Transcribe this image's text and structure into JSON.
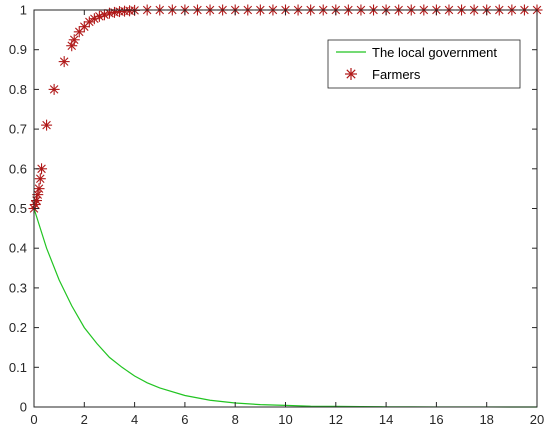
{
  "chart_data": {
    "type": "line",
    "title": "",
    "xlabel": "",
    "ylabel": "",
    "xlim": [
      0,
      20
    ],
    "ylim": [
      0,
      1
    ],
    "grid": false,
    "legend_position": "top-right",
    "x_ticks": [
      "0",
      "2",
      "4",
      "6",
      "8",
      "10",
      "12",
      "14",
      "16",
      "18",
      "20"
    ],
    "y_ticks": [
      "0",
      "0.1",
      "0.2",
      "0.3",
      "0.4",
      "0.5",
      "0.6",
      "0.7",
      "0.8",
      "0.9",
      "1"
    ],
    "series": [
      {
        "name": "The local government",
        "kind": "line",
        "color": "#22c422",
        "x": [
          0,
          0.5,
          1,
          1.5,
          2,
          2.5,
          3,
          3.5,
          4,
          4.5,
          5,
          6,
          7,
          8,
          9,
          10,
          11,
          12,
          13,
          14,
          15,
          16,
          17,
          18,
          19,
          20
        ],
        "y": [
          0.5,
          0.4,
          0.32,
          0.255,
          0.2,
          0.16,
          0.125,
          0.1,
          0.078,
          0.061,
          0.048,
          0.029,
          0.017,
          0.01,
          0.006,
          0.004,
          0.002,
          0.0015,
          0.001,
          0.0005,
          0.0003,
          0.0002,
          0.0001,
          0.0001,
          0.0,
          0.0
        ]
      },
      {
        "name": "Farmers",
        "kind": "scatter",
        "marker": "asterisk",
        "color": "#b01818",
        "x": [
          0,
          0.05,
          0.1,
          0.15,
          0.2,
          0.25,
          0.3,
          0.5,
          0.8,
          1.2,
          1.5,
          1.6,
          1.8,
          2.0,
          2.2,
          2.4,
          2.6,
          2.8,
          3.0,
          3.2,
          3.4,
          3.6,
          3.8,
          4.0,
          4.5,
          5,
          5.5,
          6,
          6.5,
          7,
          7.5,
          8,
          8.5,
          9,
          9.5,
          10,
          10.5,
          11,
          11.5,
          12,
          12.5,
          13,
          13.5,
          14,
          14.5,
          15,
          15.5,
          16,
          16.5,
          17,
          17.5,
          18,
          18.5,
          19,
          19.5,
          20
        ],
        "y": [
          0.5,
          0.51,
          0.52,
          0.535,
          0.55,
          0.575,
          0.6,
          0.71,
          0.8,
          0.87,
          0.91,
          0.925,
          0.945,
          0.958,
          0.97,
          0.978,
          0.984,
          0.988,
          0.992,
          0.994,
          0.996,
          0.997,
          0.998,
          0.999,
          1,
          1,
          1,
          1,
          1,
          1,
          1,
          1,
          1,
          1,
          1,
          1,
          1,
          1,
          1,
          1,
          1,
          1,
          1,
          1,
          1,
          1,
          1,
          1,
          1,
          1,
          1,
          1,
          1,
          1,
          1,
          1
        ]
      }
    ]
  },
  "legend": {
    "items": [
      {
        "label": "The local government"
      },
      {
        "label": "Farmers"
      }
    ]
  }
}
